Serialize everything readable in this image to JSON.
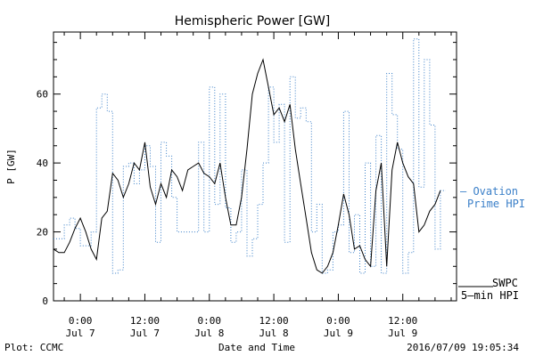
{
  "chart_data": {
    "type": "line",
    "title": "Hemispheric Power [GW]",
    "xlabel": "Date and Time",
    "ylabel": "P [GW]",
    "ylim": [
      0,
      78
    ],
    "xlim_hours": [
      -5,
      70
    ],
    "yticks": [
      0,
      20,
      40,
      60
    ],
    "x_unit": "hours from 2016-07-07 00:00 UT",
    "xticks": [
      {
        "x": 0,
        "time": "0:00",
        "date": "Jul 7"
      },
      {
        "x": 12,
        "time": "12:00",
        "date": "Jul 7"
      },
      {
        "x": 24,
        "time": "0:00",
        "date": "Jul 8"
      },
      {
        "x": 36,
        "time": "12:00",
        "date": "Jul 8"
      },
      {
        "x": 48,
        "time": "0:00",
        "date": "Jul 9"
      },
      {
        "x": 60,
        "time": "12:00",
        "date": "Jul 9"
      }
    ],
    "series": [
      {
        "name": "Ovation Prime HPI",
        "legend_text": "— Ovation\nPrime HPI",
        "color": "#3a7fc8",
        "style": "dotted-step",
        "x": [
          -5,
          -4,
          -3,
          -2,
          -1,
          0,
          1,
          2,
          3,
          4,
          5,
          6,
          7,
          8,
          9,
          10,
          11,
          12,
          13,
          14,
          15,
          16,
          17,
          18,
          19,
          20,
          21,
          22,
          23,
          24,
          25,
          26,
          27,
          28,
          29,
          30,
          31,
          32,
          33,
          34,
          35,
          36,
          37,
          38,
          39,
          40,
          41,
          42,
          43,
          44,
          45,
          46,
          47,
          48,
          49,
          50,
          51,
          52,
          53,
          54,
          55,
          56,
          57,
          58,
          59,
          60,
          61,
          62,
          63,
          64,
          65,
          66,
          67
        ],
        "y": [
          18,
          18,
          22,
          24,
          21,
          16,
          16,
          20,
          56,
          60,
          55,
          8,
          9,
          39,
          40,
          34,
          38,
          45,
          39,
          17,
          46,
          42,
          30,
          20,
          20,
          20,
          20,
          46,
          20,
          62,
          28,
          60,
          27,
          17,
          20,
          38,
          13,
          18,
          28,
          40,
          62,
          46,
          57,
          17,
          65,
          53,
          56,
          52,
          20,
          28,
          8,
          9,
          20,
          22,
          55,
          14,
          25,
          8,
          40,
          10,
          48,
          8,
          66,
          54,
          44,
          8,
          14,
          76,
          33,
          70,
          51,
          15,
          32
        ]
      },
      {
        "name": "SWPC 5-min HPI",
        "legend_text": "SWPC\n5–min HPI",
        "color": "#000000",
        "style": "solid",
        "x": [
          -5,
          -4,
          -3,
          -2,
          -1,
          0,
          1,
          2,
          3,
          4,
          5,
          6,
          7,
          8,
          9,
          10,
          11,
          12,
          13,
          14,
          15,
          16,
          17,
          18,
          19,
          20,
          21,
          22,
          23,
          24,
          25,
          26,
          27,
          28,
          29,
          30,
          31,
          32,
          33,
          34,
          35,
          36,
          37,
          38,
          39,
          40,
          41,
          42,
          43,
          44,
          45,
          46,
          47,
          48,
          49,
          50,
          51,
          52,
          53,
          54,
          55,
          56,
          57,
          58,
          59,
          60,
          61,
          62,
          63,
          64,
          65,
          66,
          67
        ],
        "y": [
          15,
          14,
          14,
          17,
          21,
          24,
          20,
          15,
          12,
          24,
          26,
          37,
          35,
          30,
          34,
          40,
          38,
          46,
          33,
          28,
          34,
          30,
          38,
          36,
          32,
          38,
          39,
          40,
          37,
          36,
          34,
          40,
          30,
          22,
          22,
          30,
          44,
          60,
          66,
          70,
          62,
          54,
          56,
          52,
          57,
          44,
          34,
          24,
          14,
          9,
          8,
          10,
          14,
          22,
          31,
          25,
          15,
          16,
          12,
          10,
          32,
          40,
          10,
          38,
          46,
          40,
          36,
          34,
          20,
          22,
          26,
          28,
          32
        ]
      }
    ],
    "annotations": {
      "plot_credit": "Plot: CCMC",
      "timestamp": "2016/07/09 19:05:34"
    }
  }
}
